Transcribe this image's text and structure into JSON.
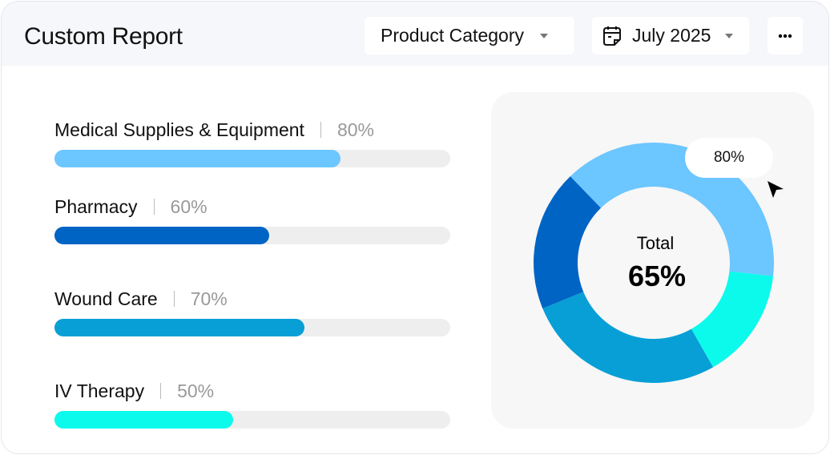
{
  "header": {
    "title": "Custom Report",
    "category_dropdown": "Product Category",
    "date_dropdown": "July 2025",
    "date_icon": "calendar-icon",
    "more_icon": "more-horizontal-icon"
  },
  "categories": [
    {
      "label": "Medical Supplies & Equipment",
      "percent": "80%",
      "value": 80,
      "color": "#6cc6ff"
    },
    {
      "label": "Pharmacy",
      "percent": "60%",
      "value": 60,
      "color": "#0064c4"
    },
    {
      "label": "Wound Care",
      "percent": "70%",
      "value": 70,
      "color": "#089fd6"
    },
    {
      "label": "IV Therapy",
      "percent": "50%",
      "value": 50,
      "color": "#0cfaec"
    }
  ],
  "track_color": "#eeeeee",
  "chart_data": {
    "type": "pie",
    "subtype": "donut",
    "segments": [
      {
        "category": "Medical Supplies & Equipment",
        "share": 39,
        "color": "#6cc6ff"
      },
      {
        "category": "IV Therapy",
        "share": 15,
        "color": "#0cfaec"
      },
      {
        "category": "Wound Care",
        "share": 27,
        "color": "#089fd6"
      },
      {
        "category": "Pharmacy",
        "share": 19,
        "color": "#0064c4"
      }
    ],
    "center_label": "Total",
    "center_value": "65%",
    "tooltip": "80%"
  }
}
